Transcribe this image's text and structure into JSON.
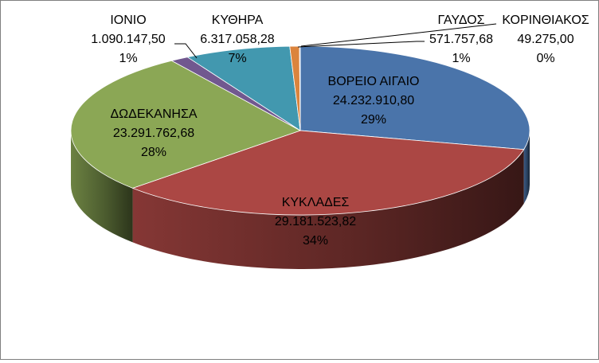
{
  "chart_data": {
    "type": "pie",
    "variant": "3d",
    "title": "",
    "legend": "none",
    "slices": [
      {
        "label": "ΒΟΡΕΙΟ ΑΙΓΑΙΟ",
        "value_text": "24.232.910,80",
        "percent_text": "29%",
        "value": 24232910.8,
        "color": "#4a74aa",
        "label_placement": "inside"
      },
      {
        "label": "ΚΥΚΛΑΔΕΣ",
        "value_text": "29.181.523,82",
        "percent_text": "34%",
        "value": 29181523.82,
        "color": "#ab4744",
        "label_placement": "inside"
      },
      {
        "label": "ΔΩΔΕΚΑΝΗΣΑ",
        "value_text": "23.291.762,68",
        "percent_text": "28%",
        "value": 23291762.68,
        "color": "#8ba755",
        "label_placement": "inside"
      },
      {
        "label": "ΙΟΝΙΟ",
        "value_text": "1.090.147,50",
        "percent_text": "1%",
        "value": 1090147.5,
        "color": "#71588f",
        "label_placement": "outside"
      },
      {
        "label": "ΚΥΘΗΡΑ",
        "value_text": "6.317.058,28",
        "percent_text": "7%",
        "value": 6317058.28,
        "color": "#4298af",
        "label_placement": "outside"
      },
      {
        "label": "ΓΑΥΔΟΣ",
        "value_text": "571.757,68",
        "percent_text": "1%",
        "value": 571757.68,
        "color": "#db843d",
        "label_placement": "outside"
      },
      {
        "label": "ΚΟΡΙΝΘΙΑΚΟΣ",
        "value_text": "49.275,00",
        "percent_text": "0%",
        "value": 49275.0,
        "color": "#93a9cf",
        "label_placement": "outside"
      }
    ]
  }
}
